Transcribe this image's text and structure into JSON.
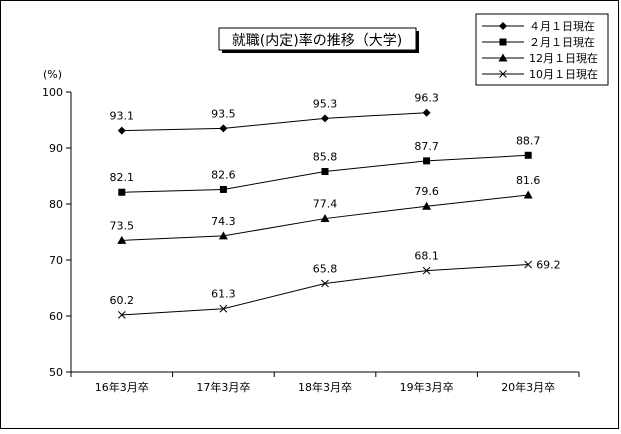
{
  "chart_data": {
    "type": "line",
    "title": "就職(内定)率の推移（大学)",
    "ylabel": "(%)",
    "xlabel": "",
    "categories": [
      "16年3月卒",
      "17年3月卒",
      "18年3月卒",
      "19年3月卒",
      "20年3月卒"
    ],
    "ylim": [
      50,
      100
    ],
    "yticks": [
      50,
      60,
      70,
      80,
      90,
      100
    ],
    "grid": false,
    "legend_position": "top-right",
    "series": [
      {
        "name": "４月１日現在",
        "marker": "diamond",
        "values": [
          93.1,
          93.5,
          95.3,
          96.3,
          null
        ],
        "labels": [
          "93.1",
          "93.5",
          "95.3",
          "96.3",
          ""
        ]
      },
      {
        "name": "２月１日現在",
        "marker": "square",
        "values": [
          82.1,
          82.6,
          85.8,
          87.7,
          88.7
        ],
        "labels": [
          "82.1",
          "82.6",
          "85.8",
          "87.7",
          "88.7"
        ]
      },
      {
        "name": "12月１日現在",
        "marker": "triangle",
        "values": [
          73.5,
          74.3,
          77.4,
          79.6,
          81.6
        ],
        "labels": [
          "73.5",
          "74.3",
          "77.4",
          "79.6",
          "81.6"
        ]
      },
      {
        "name": "10月１日現在",
        "marker": "cross",
        "values": [
          60.2,
          61.3,
          65.8,
          68.1,
          69.2
        ],
        "labels": [
          "60.2",
          "61.3",
          "65.8",
          "68.1",
          "69.2"
        ]
      }
    ]
  }
}
